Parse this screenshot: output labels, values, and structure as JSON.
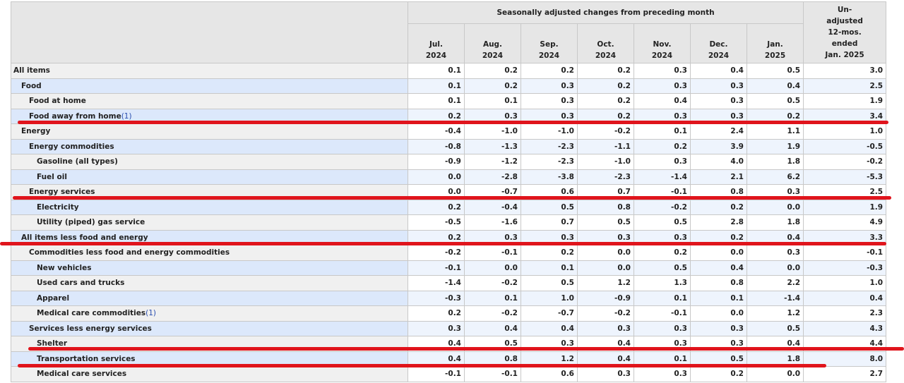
{
  "table": {
    "group_header": "Seasonally adjusted changes from preceding month",
    "columns": [
      [
        "Jul.",
        "2024"
      ],
      [
        "Aug.",
        "2024"
      ],
      [
        "Sep.",
        "2024"
      ],
      [
        "Oct.",
        "2024"
      ],
      [
        "Nov.",
        "2024"
      ],
      [
        "Dec.",
        "2024"
      ],
      [
        "Jan.",
        "2025"
      ]
    ],
    "last_column": [
      "Un-",
      "adjusted",
      "12-mos.",
      "ended",
      "Jan. 2025"
    ],
    "rows": [
      {
        "label": "All items",
        "values": [
          "0.1",
          "0.2",
          "0.2",
          "0.2",
          "0.3",
          "0.4",
          "0.5",
          "3.0"
        ]
      },
      {
        "label": "Food",
        "values": [
          "0.1",
          "0.2",
          "0.3",
          "0.2",
          "0.3",
          "0.3",
          "0.4",
          "2.5"
        ]
      },
      {
        "label": "Food at home",
        "values": [
          "0.1",
          "0.1",
          "0.3",
          "0.2",
          "0.4",
          "0.3",
          "0.5",
          "1.9"
        ]
      },
      {
        "label": "Food away from home",
        "footnote": "(1)",
        "values": [
          "0.2",
          "0.3",
          "0.3",
          "0.2",
          "0.3",
          "0.3",
          "0.2",
          "3.4"
        ]
      },
      {
        "label": "Energy",
        "values": [
          "-0.4",
          "-1.0",
          "-1.0",
          "-0.2",
          "0.1",
          "2.4",
          "1.1",
          "1.0"
        ]
      },
      {
        "label": "Energy commodities",
        "values": [
          "-0.8",
          "-1.3",
          "-2.3",
          "-1.1",
          "0.2",
          "3.9",
          "1.9",
          "-0.5"
        ]
      },
      {
        "label": "Gasoline (all types)",
        "values": [
          "-0.9",
          "-1.2",
          "-2.3",
          "-1.0",
          "0.3",
          "4.0",
          "1.8",
          "-0.2"
        ]
      },
      {
        "label": "Fuel oil",
        "values": [
          "0.0",
          "-2.8",
          "-3.8",
          "-2.3",
          "-1.4",
          "2.1",
          "6.2",
          "-5.3"
        ]
      },
      {
        "label": "Energy services",
        "values": [
          "0.0",
          "-0.7",
          "0.6",
          "0.7",
          "-0.1",
          "0.8",
          "0.3",
          "2.5"
        ]
      },
      {
        "label": "Electricity",
        "values": [
          "0.2",
          "-0.4",
          "0.5",
          "0.8",
          "-0.2",
          "0.2",
          "0.0",
          "1.9"
        ]
      },
      {
        "label": "Utility (piped) gas service",
        "values": [
          "-0.5",
          "-1.6",
          "0.7",
          "0.5",
          "0.5",
          "2.8",
          "1.8",
          "4.9"
        ]
      },
      {
        "label": "All items less food and energy",
        "values": [
          "0.2",
          "0.3",
          "0.3",
          "0.3",
          "0.3",
          "0.2",
          "0.4",
          "3.3"
        ]
      },
      {
        "label": "Commodities less food and energy commodities",
        "values": [
          "-0.2",
          "-0.1",
          "0.2",
          "0.0",
          "0.2",
          "0.0",
          "0.3",
          "-0.1"
        ]
      },
      {
        "label": "New vehicles",
        "values": [
          "-0.1",
          "0.0",
          "0.1",
          "0.0",
          "0.5",
          "0.4",
          "0.0",
          "-0.3"
        ]
      },
      {
        "label": "Used cars and trucks",
        "values": [
          "-1.4",
          "-0.2",
          "0.5",
          "1.2",
          "1.3",
          "0.8",
          "2.2",
          "1.0"
        ]
      },
      {
        "label": "Apparel",
        "values": [
          "-0.3",
          "0.1",
          "1.0",
          "-0.9",
          "0.1",
          "0.1",
          "-1.4",
          "0.4"
        ]
      },
      {
        "label": "Medical care commodities",
        "footnote": "(1)",
        "values": [
          "0.2",
          "-0.2",
          "-0.7",
          "-0.2",
          "-0.1",
          "0.0",
          "1.2",
          "2.3"
        ]
      },
      {
        "label": "Services less energy services",
        "values": [
          "0.3",
          "0.4",
          "0.4",
          "0.3",
          "0.3",
          "0.3",
          "0.5",
          "4.3"
        ]
      },
      {
        "label": "Shelter",
        "values": [
          "0.4",
          "0.5",
          "0.3",
          "0.4",
          "0.3",
          "0.3",
          "0.4",
          "4.4"
        ]
      },
      {
        "label": "Transportation services",
        "values": [
          "0.4",
          "0.8",
          "1.2",
          "0.4",
          "0.1",
          "0.5",
          "1.8",
          "8.0"
        ]
      },
      {
        "label": "Medical care services",
        "values": [
          "-0.1",
          "-0.1",
          "0.6",
          "0.3",
          "0.3",
          "0.2",
          "0.0",
          "2.7"
        ]
      }
    ]
  }
}
